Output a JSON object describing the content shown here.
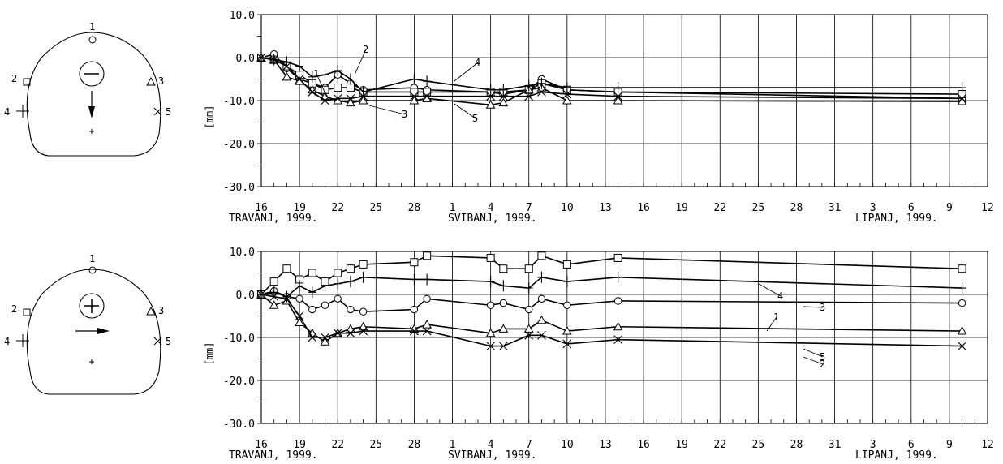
{
  "colors": {
    "ink": "#000000",
    "paper": "#ffffff"
  },
  "panels": [
    {
      "section": {
        "points": [
          "1",
          "2",
          "3",
          "4",
          "5"
        ],
        "symbol": "minus-icon",
        "arrow": "down-arrow-icon"
      },
      "ylabel": "[mm]",
      "ytick_labels": [
        "10.0",
        "0.0",
        "-10.0",
        "-20.0",
        "-30.0"
      ],
      "series_labels": [
        "1",
        "2",
        "3",
        "4",
        "5"
      ]
    },
    {
      "section": {
        "points": [
          "1",
          "2",
          "3",
          "4",
          "5"
        ],
        "symbol": "plus-icon",
        "arrow": "right-arrow-icon"
      },
      "ylabel": "[mm]",
      "ytick_labels": [
        "10.0",
        "0.0",
        "-10.0",
        "-20.0",
        "-30.0"
      ],
      "series_labels": [
        "2",
        "4",
        "1",
        "3",
        "5"
      ]
    }
  ],
  "xtick_labels": [
    "16",
    "19",
    "22",
    "25",
    "28",
    "1",
    "4",
    "7",
    "10",
    "13",
    "16",
    "19",
    "22",
    "25",
    "28",
    "31",
    "3",
    "6",
    "9",
    "12"
  ],
  "month_labels": [
    "TRAVANJ, 1999.",
    "SVIBANJ, 1999.",
    "LIPANJ, 1999."
  ],
  "chart_data": [
    {
      "type": "line",
      "title": "",
      "xlabel": "",
      "ylabel": "[mm]",
      "ylim": [
        -30,
        10
      ],
      "x": [
        16,
        17,
        18,
        19,
        20,
        21,
        22,
        23,
        24,
        28,
        29,
        34,
        35,
        37,
        38,
        40,
        44,
        71
      ],
      "x_unit": "days from 1 April 1999",
      "grid": true,
      "series": [
        {
          "name": "1",
          "marker": "circle",
          "values": [
            0,
            0.8,
            -2.5,
            -5,
            -6,
            -7,
            -4,
            -6,
            -7.5,
            -7,
            -7.5,
            -8,
            -8.5,
            -7.5,
            -5,
            -7.5,
            -8,
            -9.5
          ]
        },
        {
          "name": "2",
          "marker": "square",
          "values": [
            0,
            -0.5,
            -2,
            -4,
            -6,
            -7.5,
            -7,
            -7,
            -8,
            -8,
            -8,
            -8,
            -8,
            -7.5,
            -6,
            -7.5,
            -8,
            -8.5
          ]
        },
        {
          "name": "3",
          "marker": "triangle",
          "values": [
            0,
            -0.5,
            -4.5,
            -5.5,
            -7.5,
            -9,
            -10,
            -10.5,
            -10,
            -10,
            -9.5,
            -11,
            -10.5,
            -7.5,
            -7,
            -10,
            -10,
            -10.2
          ]
        },
        {
          "name": "4",
          "marker": "plus",
          "values": [
            0,
            -0.5,
            -1,
            -2,
            -4.5,
            -4,
            -3,
            -5,
            -8,
            -5,
            -5.5,
            -7.5,
            -7.5,
            -6.5,
            -6,
            -7,
            -7,
            -7
          ]
        },
        {
          "name": "5",
          "marker": "cross",
          "values": [
            0,
            -0.5,
            -2,
            -5,
            -8,
            -10,
            -9.5,
            -9.5,
            -9,
            -9,
            -9,
            -9,
            -9,
            -9,
            -8,
            -8.5,
            -9,
            -9.5
          ]
        }
      ]
    },
    {
      "type": "line",
      "title": "",
      "xlabel": "",
      "ylabel": "[mm]",
      "ylim": [
        -30,
        10
      ],
      "x": [
        16,
        17,
        18,
        19,
        20,
        21,
        22,
        23,
        24,
        28,
        29,
        34,
        35,
        37,
        38,
        40,
        44,
        71
      ],
      "x_unit": "days from 1 April 1999",
      "grid": true,
      "series": [
        {
          "name": "1",
          "marker": "circle",
          "values": [
            0,
            0.8,
            -0.5,
            -1,
            -3.5,
            -2.5,
            -1,
            -3.5,
            -4,
            -3.5,
            -1,
            -2.5,
            -2,
            -3.5,
            -1,
            -2.5,
            -1.5,
            -2
          ]
        },
        {
          "name": "2",
          "marker": "square",
          "values": [
            0,
            3,
            6,
            3.5,
            5,
            3,
            5,
            6,
            7,
            7.5,
            9,
            8.5,
            6,
            6,
            9,
            7,
            8.5,
            6
          ]
        },
        {
          "name": "3",
          "marker": "triangle",
          "values": [
            0,
            -2.5,
            -1.5,
            -6.5,
            -9,
            -11,
            -9,
            -8,
            -7.5,
            -8,
            -7,
            -9,
            -8,
            -8,
            -6,
            -8.5,
            -7.5,
            -8.5
          ]
        },
        {
          "name": "4",
          "marker": "plus",
          "values": [
            0,
            0.5,
            -0.5,
            2,
            0.5,
            2,
            2.5,
            3,
            4,
            3.5,
            3.5,
            3,
            2,
            1.5,
            4,
            3,
            4,
            1.5
          ]
        },
        {
          "name": "5",
          "marker": "cross",
          "values": [
            0,
            -0.5,
            -1,
            -5,
            -10,
            -10,
            -9,
            -9,
            -8.5,
            -8.5,
            -8.5,
            -12,
            -12,
            -9.5,
            -9.5,
            -11.5,
            -10.5,
            -12
          ]
        }
      ]
    }
  ]
}
